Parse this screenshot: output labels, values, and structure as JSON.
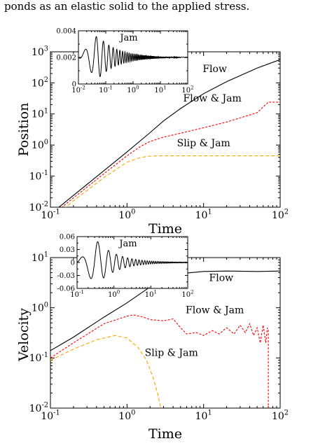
{
  "header_text": "ponds as an elastic solid to the applied stress.",
  "colors": {
    "flow": "#000000",
    "flow_jam": "#ff0000",
    "slip_jam": "#ffa500"
  },
  "chart_data": [
    {
      "type": "line",
      "ylabel": "Position",
      "xlabel": "Time",
      "x_scale": "log",
      "y_scale": "log",
      "xlim": [
        0.1,
        100
      ],
      "ylim": [
        0.01,
        1000
      ],
      "x_ticks": [
        {
          "v": 0.1,
          "m": "10",
          "e": "-1"
        },
        {
          "v": 1,
          "m": "10",
          "e": "0"
        },
        {
          "v": 10,
          "m": "10",
          "e": "1"
        },
        {
          "v": 100,
          "m": "10",
          "e": "2"
        }
      ],
      "y_ticks": [
        {
          "v": 0.01,
          "m": "10",
          "e": "-2"
        },
        {
          "v": 0.1,
          "m": "10",
          "e": "-1"
        },
        {
          "v": 1,
          "m": "10",
          "e": "0"
        },
        {
          "v": 10,
          "m": "10",
          "e": "1"
        },
        {
          "v": 100,
          "m": "10",
          "e": "2"
        },
        {
          "v": 1000,
          "m": "10",
          "e": "3"
        }
      ],
      "series": [
        {
          "name": "Flow",
          "color": "#000000",
          "dash": "none",
          "x": [
            0.1,
            0.2,
            0.5,
            1,
            2,
            3,
            5,
            10,
            20,
            50,
            100
          ],
          "y": [
            0.006,
            0.024,
            0.15,
            0.6,
            2.5,
            6,
            15,
            45,
            110,
            300,
            560
          ]
        },
        {
          "name": "Flow & Jam",
          "color": "#ff0000",
          "dash": "3,2",
          "x": [
            0.1,
            0.2,
            0.5,
            1,
            1.5,
            2,
            3,
            5,
            10,
            20,
            50,
            70,
            100
          ],
          "y": [
            0.005,
            0.02,
            0.12,
            0.45,
            0.9,
            1.3,
            1.8,
            2.4,
            3.6,
            5.5,
            11,
            24,
            24
          ]
        },
        {
          "name": "Slip & Jam",
          "color": "#ffa500",
          "dash": "5,3",
          "x": [
            0.1,
            0.2,
            0.5,
            1,
            1.5,
            2,
            3,
            10,
            100
          ],
          "y": [
            0.004,
            0.016,
            0.09,
            0.28,
            0.4,
            0.44,
            0.45,
            0.45,
            0.45
          ]
        }
      ],
      "annotations": [
        {
          "text": "Flow",
          "x": 14,
          "y": 220
        },
        {
          "text": "Flow & Jam",
          "x": 13,
          "y": 25
        },
        {
          "text": "Slip & Jam",
          "x": 10,
          "y": 0.9
        }
      ],
      "inset": {
        "x_scale": "log",
        "y_scale": "linear",
        "xlim": [
          0.01,
          100
        ],
        "ylim": [
          0,
          0.004
        ],
        "x_ticks": [
          {
            "v": 0.01,
            "m": "10",
            "e": "-2"
          },
          {
            "v": 0.1,
            "m": "10",
            "e": "-1"
          },
          {
            "v": 1,
            "m": "10",
            "e": "0"
          },
          {
            "v": 10,
            "m": "10",
            "e": "1"
          },
          {
            "v": 100,
            "m": "10",
            "e": "2"
          }
        ],
        "y_ticks": [
          {
            "v": 0,
            "label": "0"
          },
          {
            "v": 0.002,
            "label": "0.002"
          },
          {
            "v": 0.004,
            "label": "0.004"
          }
        ],
        "label": "Jam",
        "series": {
          "name": "Jam",
          "color": "#000000",
          "kind": "damped",
          "base": 0.002,
          "amp": 0.0016,
          "xstart": 0.01,
          "xend": 100
        }
      }
    },
    {
      "type": "line",
      "ylabel": "Velocity",
      "xlabel": "Time",
      "x_scale": "log",
      "y_scale": "log",
      "xlim": [
        0.1,
        100
      ],
      "ylim": [
        0.01,
        10
      ],
      "x_ticks": [
        {
          "v": 0.1,
          "m": "10",
          "e": "-1"
        },
        {
          "v": 1,
          "m": "10",
          "e": "0"
        },
        {
          "v": 10,
          "m": "10",
          "e": "1"
        },
        {
          "v": 100,
          "m": "10",
          "e": "2"
        }
      ],
      "y_ticks": [
        {
          "v": 0.01,
          "m": "10",
          "e": "-2"
        },
        {
          "v": 0.1,
          "m": "10",
          "e": "-1"
        },
        {
          "v": 1,
          "m": "10",
          "e": "0"
        },
        {
          "v": 10,
          "m": "10",
          "e": "1"
        }
      ],
      "series": [
        {
          "name": "Flow",
          "color": "#000000",
          "dash": "none",
          "x": [
            0.1,
            0.2,
            0.5,
            1,
            2,
            3,
            5,
            10,
            20,
            50,
            100
          ],
          "y": [
            0.14,
            0.26,
            0.65,
            1.25,
            2.6,
            3.8,
            4.8,
            5.3,
            5.4,
            5.3,
            5.4
          ]
        },
        {
          "name": "Flow & Jam",
          "color": "#ff0000",
          "dash": "3,2",
          "x": [
            0.1,
            0.2,
            0.5,
            1,
            1.2,
            1.6,
            2,
            3,
            4,
            5,
            6,
            8,
            10,
            13,
            16,
            20,
            25,
            30,
            35,
            40,
            45,
            50,
            55,
            60,
            65,
            68,
            70,
            70.01
          ],
          "y": [
            0.1,
            0.2,
            0.48,
            0.68,
            0.72,
            0.66,
            0.58,
            0.55,
            0.6,
            0.4,
            0.3,
            0.32,
            0.28,
            0.35,
            0.3,
            0.4,
            0.3,
            0.45,
            0.32,
            0.48,
            0.28,
            0.4,
            0.2,
            0.45,
            0.2,
            0.4,
            0.35,
            0.01
          ]
        },
        {
          "name": "Slip & Jam",
          "color": "#ffa500",
          "dash": "5,3",
          "x": [
            0.1,
            0.2,
            0.4,
            0.7,
            1,
            1.4,
            1.8,
            2.2,
            2.5,
            2.7,
            2.75
          ],
          "y": [
            0.09,
            0.15,
            0.23,
            0.28,
            0.25,
            0.16,
            0.09,
            0.04,
            0.02,
            0.012,
            0.01
          ]
        }
      ],
      "annotations": [
        {
          "text": "Flow",
          "x": 17,
          "y": 3.4
        },
        {
          "text": "Flow & Jam",
          "x": 14,
          "y": 0.78
        },
        {
          "text": "Slip & Jam",
          "x": 3.8,
          "y": 0.11
        }
      ],
      "inset": {
        "x_scale": "log",
        "y_scale": "linear",
        "xlim": [
          0.1,
          100
        ],
        "ylim": [
          -0.06,
          0.06
        ],
        "x_ticks": [
          {
            "v": 0.1,
            "m": "10",
            "e": "-1"
          },
          {
            "v": 1,
            "m": "10",
            "e": "0"
          },
          {
            "v": 10,
            "m": "10",
            "e": "1"
          },
          {
            "v": 100,
            "m": "10",
            "e": "2"
          }
        ],
        "y_ticks": [
          {
            "v": 0.06,
            "label": "0.06"
          },
          {
            "v": 0.03,
            "label": "0.03"
          },
          {
            "v": 0,
            "label": "0"
          },
          {
            "v": -0.03,
            "label": "-0.03"
          },
          {
            "v": -0.06,
            "label": "-0.06"
          }
        ],
        "label": "Jam",
        "series": {
          "name": "Jam",
          "color": "#000000",
          "kind": "damped",
          "base": 0,
          "amp": 0.05,
          "xstart": 0.1,
          "xend": 100
        }
      }
    }
  ]
}
